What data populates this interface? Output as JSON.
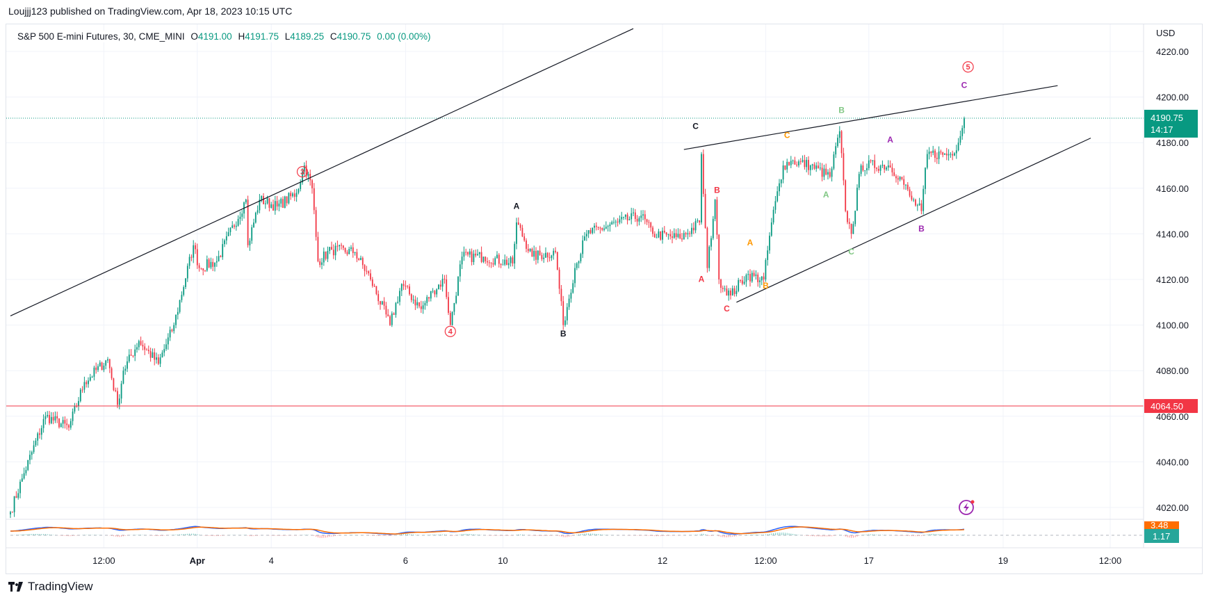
{
  "publisher": "Loujjj123 published on TradingView.com, Apr 18, 2023 10:15 UTC",
  "legend": {
    "symbol": "S&P 500 E-mini Futures, 30, CME_MINI",
    "o_label": "O",
    "o": "4191.00",
    "h_label": "H",
    "h": "4191.75",
    "l_label": "L",
    "l": "4189.25",
    "c_label": "C",
    "c": "4190.75",
    "change": "0.00 (0.00%)"
  },
  "footer": {
    "brand": "TradingView"
  },
  "colors": {
    "up": "#089981",
    "down": "#F23645",
    "macd": "#2962FF",
    "signal": "#FF6D00",
    "grid": "#f0f3fa"
  },
  "chart_data": {
    "type": "candlestick",
    "currency": "USD",
    "ylim": [
      4012,
      4230
    ],
    "yticks": [
      "4220.00",
      "4200.00",
      "4180.00",
      "4160.00",
      "4140.00",
      "4120.00",
      "4100.00",
      "4080.00",
      "4060.00",
      "4040.00",
      "4020.00"
    ],
    "xticks": [
      {
        "label": "12:00",
        "bar": 48
      },
      {
        "label": "Apr",
        "bar": 96,
        "bold": true
      },
      {
        "label": "4",
        "bar": 134
      },
      {
        "label": "6",
        "bar": 203
      },
      {
        "label": "10",
        "bar": 253
      },
      {
        "label": "12",
        "bar": 335
      },
      {
        "label": "12:00",
        "bar": 388
      },
      {
        "label": "17",
        "bar": 441
      },
      {
        "label": "19",
        "bar": 510
      },
      {
        "label": "12:00",
        "bar": 565
      }
    ],
    "bars_total": 490,
    "close_waypoints": [
      [
        0,
        4018
      ],
      [
        7,
        4035
      ],
      [
        18,
        4060
      ],
      [
        30,
        4055
      ],
      [
        38,
        4075
      ],
      [
        50,
        4085
      ],
      [
        55,
        4065
      ],
      [
        58,
        4080
      ],
      [
        66,
        4093
      ],
      [
        76,
        4083
      ],
      [
        84,
        4100
      ],
      [
        94,
        4135
      ],
      [
        97,
        4125
      ],
      [
        106,
        4128
      ],
      [
        121,
        4155
      ],
      [
        122,
        4135
      ],
      [
        128,
        4155
      ],
      [
        137,
        4152
      ],
      [
        147,
        4158
      ],
      [
        151,
        4170
      ],
      [
        155,
        4160
      ],
      [
        158,
        4128
      ],
      [
        165,
        4133
      ],
      [
        177,
        4132
      ],
      [
        185,
        4120
      ],
      [
        195,
        4100
      ],
      [
        201,
        4118
      ],
      [
        211,
        4107
      ],
      [
        217,
        4115
      ],
      [
        223,
        4120
      ],
      [
        226,
        4100
      ],
      [
        232,
        4130
      ],
      [
        243,
        4130
      ],
      [
        258,
        4127
      ],
      [
        260,
        4145
      ],
      [
        268,
        4130
      ],
      [
        280,
        4132
      ],
      [
        284,
        4100
      ],
      [
        290,
        4125
      ],
      [
        296,
        4140
      ],
      [
        312,
        4145
      ],
      [
        324,
        4148
      ],
      [
        330,
        4140
      ],
      [
        344,
        4138
      ],
      [
        354,
        4145
      ],
      [
        355,
        4175
      ],
      [
        358,
        4125
      ],
      [
        362,
        4155
      ],
      [
        364,
        4120
      ],
      [
        370,
        4113
      ],
      [
        378,
        4122
      ],
      [
        387,
        4120
      ],
      [
        391,
        4145
      ],
      [
        397,
        4170
      ],
      [
        401,
        4172
      ],
      [
        411,
        4170
      ],
      [
        421,
        4165
      ],
      [
        426,
        4185
      ],
      [
        429,
        4150
      ],
      [
        432,
        4140
      ],
      [
        437,
        4170
      ],
      [
        451,
        4170
      ],
      [
        457,
        4165
      ],
      [
        463,
        4155
      ],
      [
        468,
        4150
      ],
      [
        471,
        4175
      ],
      [
        483,
        4175
      ],
      [
        487,
        4180
      ],
      [
        490,
        4190.75
      ]
    ],
    "last_price": {
      "value": "4190.75",
      "countdown": "14:17"
    },
    "horizontal_level": {
      "value": "4064.50"
    },
    "trendlines": [
      {
        "from": [
          0,
          4104
        ],
        "to": [
          320,
          4230
        ]
      },
      {
        "from": [
          346,
          4177
        ],
        "to": [
          538,
          4205
        ]
      },
      {
        "from": [
          373,
          4110
        ],
        "to": [
          555,
          4182
        ]
      }
    ],
    "wave_labels": [
      {
        "text": "3",
        "circled": true,
        "bar": 150,
        "price": 4166,
        "color": "#F23645"
      },
      {
        "text": "4",
        "circled": true,
        "bar": 226,
        "price": 4096,
        "color": "#F23645"
      },
      {
        "text": "5",
        "circled": true,
        "bar": 492,
        "price": 4212,
        "color": "#F23645"
      },
      {
        "text": "A",
        "bar": 260,
        "price": 4151,
        "color": "#131722"
      },
      {
        "text": "B",
        "bar": 284,
        "price": 4095,
        "color": "#131722"
      },
      {
        "text": "C",
        "bar": 352,
        "price": 4186,
        "color": "#131722"
      },
      {
        "text": "A",
        "bar": 355,
        "price": 4119,
        "color": "#F23645"
      },
      {
        "text": "B",
        "bar": 363,
        "price": 4158,
        "color": "#F23645"
      },
      {
        "text": "C",
        "bar": 368,
        "price": 4106,
        "color": "#F23645"
      },
      {
        "text": "A",
        "bar": 380,
        "price": 4135,
        "color": "#FF9800"
      },
      {
        "text": "B",
        "bar": 388,
        "price": 4116,
        "color": "#FF9800"
      },
      {
        "text": "C",
        "bar": 399,
        "price": 4182,
        "color": "#FF9800"
      },
      {
        "text": "A",
        "bar": 419,
        "price": 4156,
        "color": "#81C784"
      },
      {
        "text": "B",
        "bar": 427,
        "price": 4193,
        "color": "#81C784"
      },
      {
        "text": "C",
        "bar": 432,
        "price": 4131,
        "color": "#81C784"
      },
      {
        "text": "A",
        "bar": 452,
        "price": 4180,
        "color": "#9C27B0"
      },
      {
        "text": "B",
        "bar": 468,
        "price": 4141,
        "color": "#9C27B0"
      },
      {
        "text": "C",
        "bar": 490,
        "price": 4204,
        "color": "#9C27B0"
      }
    ],
    "oscillator": {
      "macd_label": "3.48",
      "signal_label": "1.17"
    }
  }
}
